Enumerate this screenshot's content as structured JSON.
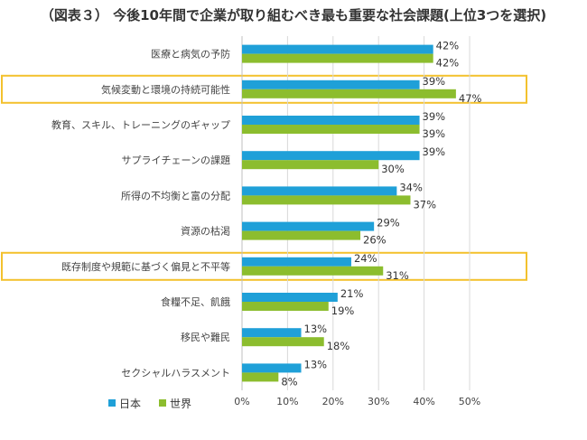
{
  "chart_data": {
    "type": "bar",
    "orientation": "horizontal",
    "title": "（図表３） 今後10年間で企業が取り組むべき最も重要な社会課題(上位3つを選択)",
    "categories": [
      "医療と病気の予防",
      "気候変動と環境の持続可能性",
      "教育、スキル、トレーニングのギャップ",
      "サプライチェーンの課題",
      "所得の不均衡と富の分配",
      "資源の枯渇",
      "既存制度や規範に基づく偏見と不平等",
      "食糧不足、飢餓",
      "移民や難民",
      "セクシャルハラスメント"
    ],
    "series": [
      {
        "name": "日本",
        "color": "#1fa0d8",
        "values": [
          42,
          39,
          39,
          39,
          34,
          29,
          24,
          21,
          13,
          13
        ]
      },
      {
        "name": "世界",
        "color": "#8cbd2e",
        "values": [
          42,
          47,
          39,
          30,
          37,
          26,
          31,
          19,
          18,
          8
        ]
      }
    ],
    "value_suffix": "%",
    "xlim": [
      0,
      50
    ],
    "xticks": [
      "0%",
      "10%",
      "20%",
      "30%",
      "40%",
      "50%"
    ],
    "highlighted_categories": [
      1,
      6
    ],
    "highlight_color": "#f3c12e",
    "legend_position": "bottom-left",
    "grid": true
  }
}
